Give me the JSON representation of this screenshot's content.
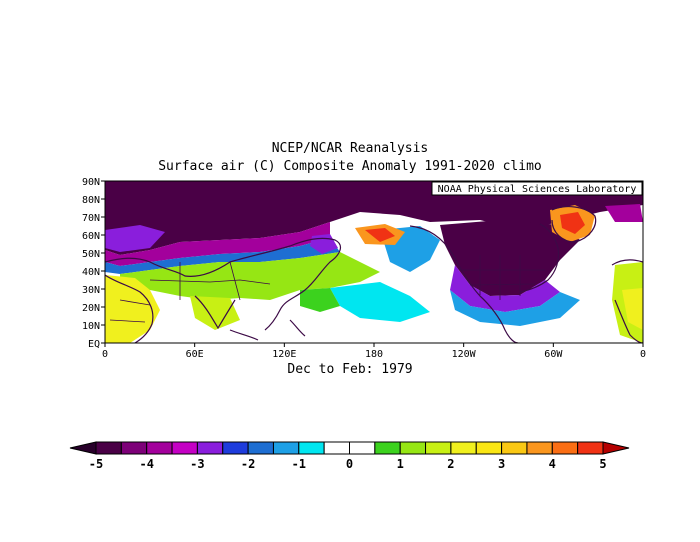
{
  "title_line1": "NCEP/NCAR Reanalysis",
  "title_line2": "Surface air (C) Composite Anomaly 1991-2020 climo",
  "subtitle": "Dec to Feb: 1979",
  "credit": "NOAA Physical Sciences Laboratory",
  "lat_labels": [
    "90N",
    "80N",
    "70N",
    "60N",
    "50N",
    "40N",
    "30N",
    "20N",
    "10N",
    "EQ"
  ],
  "lon_labels": [
    "0",
    "60E",
    "120E",
    "180",
    "120W",
    "60W",
    "0"
  ],
  "colorbar": {
    "labels": [
      "-5",
      "-4",
      "-3",
      "-2",
      "-1",
      "0",
      "1",
      "2",
      "3",
      "4",
      "5"
    ],
    "colors": [
      "#4a0046",
      "#7d0078",
      "#a3009c",
      "#c400c4",
      "#8a1edc",
      "#1e3cdc",
      "#1e6ed2",
      "#1ea0e6",
      "#00e6f0",
      "#ffffff",
      "#ffffff",
      "#3cd21e",
      "#96e614",
      "#c8f014",
      "#f0f01e",
      "#fae614",
      "#fac814",
      "#fa961e",
      "#fa6e14",
      "#f03214"
    ],
    "arrow_left_color": "#28002a",
    "arrow_right_color": "#b40000"
  },
  "map_colors": {
    "deep_purple": "#4a0046",
    "purple": "#a3009c",
    "violet": "#8a1edc",
    "blue": "#1e6ed2",
    "light_blue": "#1ea0e6",
    "cyan": "#00e6f0",
    "green": "#3cd21e",
    "light_green": "#96e614",
    "yellow_green": "#c8f014",
    "yellow": "#f0f01e",
    "orange": "#fa961e",
    "red": "#f03214",
    "coast": "#3c0a46"
  }
}
